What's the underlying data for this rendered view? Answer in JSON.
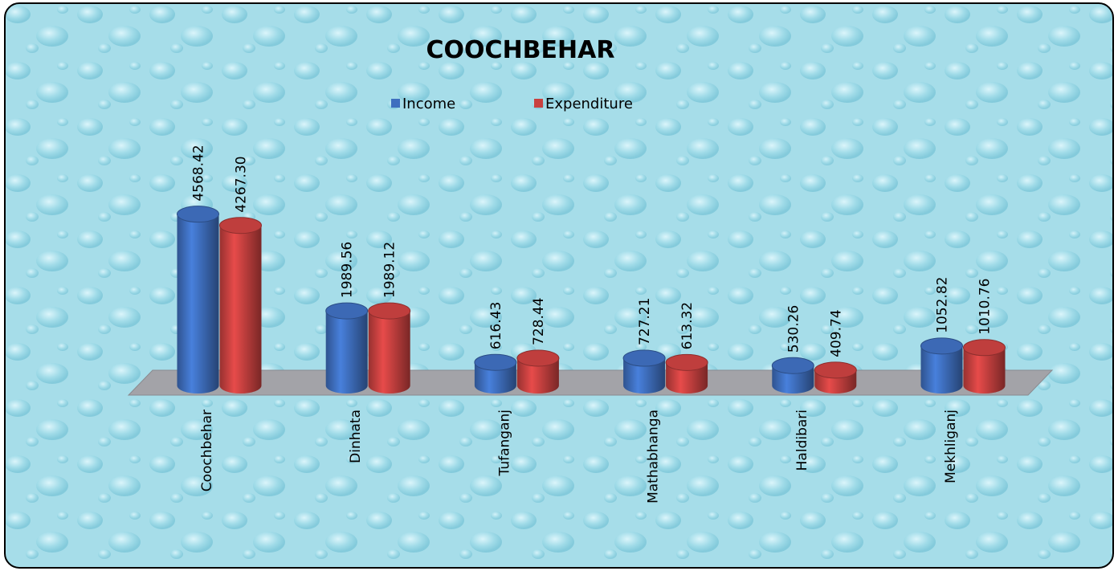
{
  "chart_data": {
    "type": "bar",
    "title": "COOCHBEHAR",
    "categories": [
      "Coochbehar",
      "Dinhata",
      "Tufanganj",
      "Mathabhanga",
      "Haldibari",
      "Mekhliganj"
    ],
    "series": [
      {
        "name": "Income",
        "color": "#3f6fbf",
        "values": [
          4568.42,
          1989.56,
          616.43,
          727.21,
          530.26,
          1052.82
        ]
      },
      {
        "name": "Expenditure",
        "color": "#c94140",
        "values": [
          4267.3,
          1989.12,
          728.44,
          613.32,
          409.74,
          1010.76
        ],
        "value_labels": [
          "4267.30",
          "1989.12",
          "728.44",
          "613.32",
          "409.74",
          "1010.76"
        ]
      }
    ],
    "legend": "top"
  }
}
